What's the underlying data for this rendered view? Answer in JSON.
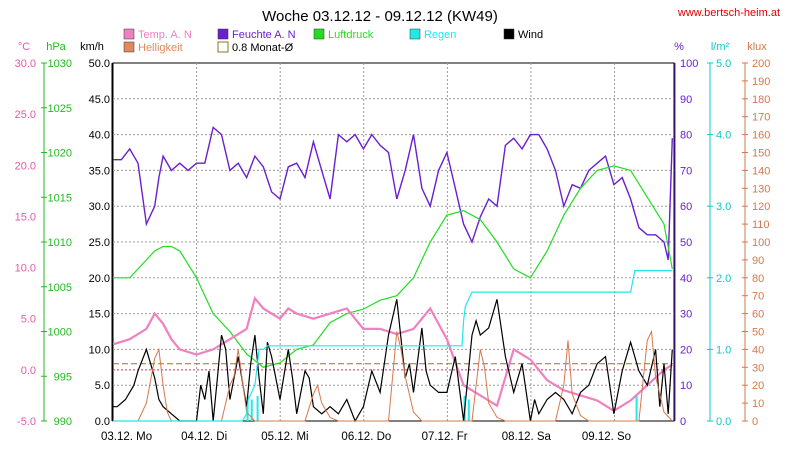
{
  "title": "Woche 03.12.12 - 09.12.12 (KW49)",
  "site": "www.bertsch-heim.at",
  "axes": {
    "temp": {
      "unit": "°C",
      "ticks": [
        "30.0",
        "25.0",
        "20.0",
        "15.0",
        "10.0",
        "5.0",
        "0.0",
        "-5.0"
      ],
      "color": "#e75aa5"
    },
    "press": {
      "unit": "hPa",
      "ticks": [
        "1030",
        "1025",
        "1020",
        "1015",
        "1010",
        "1005",
        "1000",
        "995",
        "990"
      ],
      "color": "#22bb22"
    },
    "wind": {
      "unit": "km/h",
      "ticks": [
        "50.0",
        "45.0",
        "40.0",
        "35.0",
        "30.0",
        "25.0",
        "20.0",
        "15.0",
        "10.0",
        "5.0",
        "0.0"
      ],
      "color": "#000000"
    },
    "hum": {
      "unit": "%",
      "ticks": [
        "100",
        "90",
        "80",
        "70",
        "60",
        "50",
        "40",
        "30",
        "20",
        "10",
        "0"
      ],
      "color": "#6a1fd0"
    },
    "rain": {
      "unit": "l/m²",
      "ticks": [
        "5.0",
        "4.0",
        "3.0",
        "2.0",
        "1.0",
        "0.0"
      ],
      "color": "#10c8c8"
    },
    "light": {
      "unit": "klux",
      "ticks": [
        "200",
        "190",
        "180",
        "170",
        "160",
        "150",
        "140",
        "130",
        "120",
        "110",
        "100",
        "90",
        "80",
        "70",
        "60",
        "50",
        "40",
        "30",
        "20",
        "10",
        "0"
      ],
      "color": "#d8774a"
    }
  },
  "x_labels": [
    "03.12.  Mo",
    "04.12.  Di",
    "05.12.  Mi",
    "06.12.  Do",
    "07.12.  Fr",
    "08.12.  Sa",
    "09.12.  So"
  ],
  "legend": [
    {
      "label": "Temp. A. N",
      "color": "#f080c0",
      "style": "fill"
    },
    {
      "label": "Feuchte A. N",
      "color": "#6a1fd0",
      "style": "fill"
    },
    {
      "label": "Luftdruck",
      "color": "#22dd22",
      "style": "fill"
    },
    {
      "label": "Regen",
      "color": "#22e8e8",
      "style": "fill"
    },
    {
      "label": "Wind",
      "color": "#000000",
      "style": "fill"
    },
    {
      "label": "Helligkeit",
      "color": "#e08a60",
      "style": "fill"
    },
    {
      "label": "0.8 Monat-Ø",
      "color": "#8a7a20",
      "style": "outline"
    }
  ],
  "chart_data": {
    "type": "line",
    "x_range": [
      0,
      7
    ],
    "x_unit": "days",
    "ylim_wind": [
      0,
      50
    ],
    "reference_lines": {
      "monthly_avg_0_8": 0.8,
      "zero_temp": 0.0
    },
    "series": [
      {
        "name": "Feuchte A. N",
        "axis": "hum",
        "color": "#6a1fd0",
        "x": [
          0,
          0.1,
          0.2,
          0.3,
          0.4,
          0.5,
          0.55,
          0.6,
          0.7,
          0.8,
          0.9,
          1.0,
          1.1,
          1.2,
          1.3,
          1.4,
          1.5,
          1.6,
          1.7,
          1.8,
          1.9,
          2.0,
          2.1,
          2.2,
          2.3,
          2.4,
          2.5,
          2.6,
          2.7,
          2.8,
          2.9,
          3.0,
          3.1,
          3.2,
          3.3,
          3.4,
          3.5,
          3.6,
          3.7,
          3.8,
          3.9,
          4.0,
          4.1,
          4.2,
          4.3,
          4.4,
          4.5,
          4.6,
          4.7,
          4.8,
          4.9,
          5.0,
          5.1,
          5.2,
          5.3,
          5.4,
          5.5,
          5.6,
          5.7,
          5.8,
          5.9,
          6.0,
          6.1,
          6.2,
          6.3,
          6.4,
          6.5,
          6.6,
          6.65,
          6.7
        ],
        "values": [
          73,
          73,
          76,
          72,
          55,
          60,
          68,
          74,
          70,
          72,
          70,
          72,
          72,
          82,
          80,
          70,
          72,
          68,
          74,
          71,
          64,
          62,
          71,
          72,
          68,
          78,
          70,
          62,
          80,
          78,
          80,
          76,
          80,
          77,
          75,
          62,
          70,
          80,
          65,
          60,
          70,
          75,
          65,
          55,
          50,
          57,
          62,
          60,
          77,
          79,
          76,
          80,
          80,
          76,
          70,
          60,
          66,
          65,
          70,
          72,
          74,
          66,
          68,
          62,
          54,
          52,
          52,
          50,
          45,
          79
        ]
      },
      {
        "name": "Luftdruck",
        "axis": "press",
        "color": "#22dd22",
        "x": [
          0,
          0.2,
          0.4,
          0.5,
          0.6,
          0.7,
          0.8,
          1.0,
          1.1,
          1.2,
          1.4,
          1.6,
          1.8,
          2.0,
          2.2,
          2.4,
          2.6,
          2.8,
          3.0,
          3.2,
          3.4,
          3.6,
          3.8,
          4.0,
          4.2,
          4.4,
          4.6,
          4.8,
          5.0,
          5.2,
          5.4,
          5.6,
          5.8,
          6.0,
          6.2,
          6.4,
          6.6,
          6.7
        ],
        "values": [
          1006,
          1006,
          1008,
          1009,
          1009.5,
          1009.5,
          1009,
          1006,
          1004,
          1002,
          1000,
          997.5,
          996,
          996.5,
          998,
          998.5,
          1001,
          1002,
          1002.5,
          1003.5,
          1004,
          1006,
          1010,
          1013,
          1013.5,
          1012.5,
          1010,
          1007,
          1006,
          1009,
          1013,
          1016,
          1018,
          1018.5,
          1018,
          1015,
          1012,
          1007
        ]
      },
      {
        "name": "Temp. A. N",
        "axis": "temp",
        "color": "#f080c0",
        "x": [
          0,
          0.2,
          0.4,
          0.5,
          0.6,
          0.7,
          0.8,
          1.0,
          1.2,
          1.4,
          1.6,
          1.7,
          1.8,
          2.0,
          2.1,
          2.2,
          2.4,
          2.6,
          2.8,
          3.0,
          3.2,
          3.4,
          3.6,
          3.8,
          4.0,
          4.2,
          4.4,
          4.6,
          4.8,
          5.0,
          5.2,
          5.4,
          5.6,
          5.8,
          6.0,
          6.2,
          6.4,
          6.6,
          6.7
        ],
        "values": [
          2.5,
          3,
          4,
          5.5,
          4.5,
          3,
          2,
          1.5,
          2,
          3,
          4,
          7,
          6,
          5,
          6,
          5.5,
          5,
          5.5,
          6,
          4,
          4,
          3.5,
          4,
          6,
          3,
          -1.5,
          -2.5,
          -3.5,
          2,
          1,
          -1,
          -2,
          -2.5,
          -3,
          -4,
          -3,
          -1.5,
          0,
          0.5
        ]
      },
      {
        "name": "Wind",
        "axis": "wind",
        "color": "#000000",
        "x": [
          0,
          0.05,
          0.15,
          0.25,
          0.3,
          0.4,
          0.45,
          0.5,
          0.55,
          0.6,
          0.7,
          0.8,
          0.9,
          1.0,
          1.05,
          1.1,
          1.15,
          1.2,
          1.25,
          1.3,
          1.35,
          1.4,
          1.5,
          1.6,
          1.65,
          1.7,
          1.75,
          1.8,
          1.85,
          1.9,
          2.0,
          2.1,
          2.15,
          2.2,
          2.3,
          2.35,
          2.4,
          2.5,
          2.6,
          2.7,
          2.8,
          2.9,
          3.0,
          3.1,
          3.2,
          3.3,
          3.4,
          3.5,
          3.55,
          3.6,
          3.7,
          3.75,
          3.8,
          3.9,
          4.0,
          4.1,
          4.2,
          4.3,
          4.35,
          4.4,
          4.5,
          4.6,
          4.7,
          4.8,
          4.9,
          5.0,
          5.05,
          5.1,
          5.2,
          5.3,
          5.4,
          5.5,
          5.6,
          5.7,
          5.8,
          5.9,
          6.0,
          6.1,
          6.2,
          6.3,
          6.4,
          6.5,
          6.55,
          6.6,
          6.65,
          6.7
        ],
        "values": [
          2,
          2,
          3,
          5,
          7,
          10,
          8,
          6,
          3,
          2,
          1,
          0,
          0,
          0,
          5,
          3,
          7,
          0,
          6,
          12,
          10,
          3,
          9,
          2,
          8,
          12,
          6,
          1,
          11,
          9,
          3,
          10,
          6,
          1,
          7,
          6,
          2,
          1,
          2,
          1,
          3,
          0,
          2,
          7,
          4,
          12,
          17,
          6,
          8,
          4,
          13,
          7,
          5,
          4,
          4,
          9,
          0,
          12,
          14,
          12,
          13,
          17,
          9,
          4,
          8,
          0,
          3,
          1,
          3,
          4,
          3,
          1,
          4,
          5,
          8,
          9,
          1,
          7,
          11,
          7,
          5,
          10,
          2,
          8,
          1,
          10
        ]
      },
      {
        "name": "Helligkeit",
        "axis": "light",
        "color": "#d8774a",
        "x": [
          0,
          0.3,
          0.4,
          0.5,
          0.55,
          0.6,
          0.65,
          0.7,
          1.0,
          1.3,
          1.4,
          1.45,
          1.5,
          1.6,
          1.7,
          2.0,
          2.3,
          2.4,
          2.45,
          2.5,
          2.6,
          2.7,
          3.0,
          3.3,
          3.4,
          3.45,
          3.5,
          3.6,
          3.7,
          4.0,
          4.3,
          4.4,
          4.45,
          4.5,
          4.6,
          4.7,
          5.0,
          5.3,
          5.4,
          5.45,
          5.5,
          5.6,
          5.7,
          6.0,
          6.3,
          6.4,
          6.45,
          6.5,
          6.6,
          6.7
        ],
        "values": [
          0,
          0,
          10,
          35,
          40,
          20,
          5,
          0,
          0,
          0,
          20,
          25,
          40,
          5,
          0,
          0,
          0,
          15,
          20,
          10,
          2,
          0,
          0,
          0,
          50,
          40,
          25,
          5,
          0,
          0,
          0,
          40,
          30,
          10,
          2,
          0,
          0,
          0,
          20,
          45,
          15,
          3,
          0,
          0,
          0,
          45,
          50,
          25,
          5,
          0
        ]
      },
      {
        "name": "Regen",
        "axis": "rain",
        "color": "#22e8e8",
        "x": [
          0,
          1.55,
          1.6,
          1.62,
          1.7,
          1.72,
          1.75,
          1.8,
          1.85,
          2.0,
          2.5,
          3.0,
          3.5,
          4.0,
          4.18,
          4.2,
          4.22,
          4.3,
          4.35,
          4.5,
          5.0,
          5.5,
          6.0,
          6.2,
          6.25,
          6.3,
          6.5,
          6.7
        ],
        "values": [
          0,
          0,
          0.1,
          0.3,
          0.5,
          0.7,
          1.0,
          1.0,
          1.05,
          1.05,
          1.05,
          1.05,
          1.05,
          1.05,
          1.05,
          1.4,
          1.6,
          1.8,
          1.8,
          1.8,
          1.8,
          1.8,
          1.8,
          1.8,
          2.1,
          2.1,
          2.1,
          2.1
        ]
      }
    ],
    "bars": [
      {
        "name": "Regen",
        "axis": "rain",
        "color": "#22e8e8",
        "x": [
          1.6,
          1.65,
          1.72,
          4.2,
          4.25,
          6.26
        ],
        "values": [
          0.35,
          0.3,
          0.35,
          0.35,
          0.3,
          0.35
        ]
      }
    ]
  }
}
